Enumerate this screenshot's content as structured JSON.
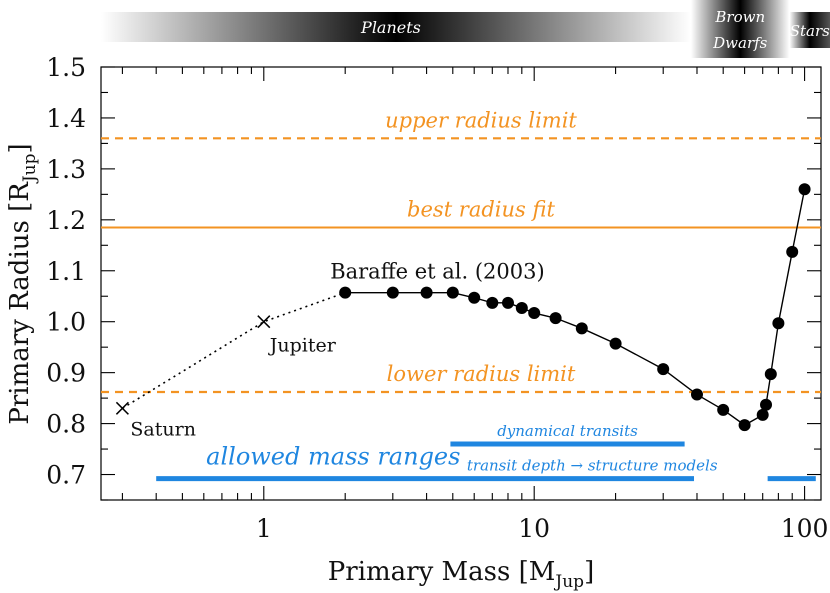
{
  "chart_data": {
    "type": "line",
    "xscale": "log",
    "xlim": [
      0.25,
      115
    ],
    "ylim": [
      0.65,
      1.5
    ],
    "xlabel": "Primary Mass [M",
    "xlabel_sub": "Jup",
    "xlabel_tail": "]",
    "ylabel": "Primary Radius [R",
    "ylabel_sub": "Jup",
    "ylabel_tail": "]",
    "x_ticks": [
      {
        "value": 1,
        "label": "1"
      },
      {
        "value": 10,
        "label": "10"
      },
      {
        "value": 100,
        "label": "100"
      }
    ],
    "y_ticks": [
      {
        "value": 0.7,
        "label": "0.7"
      },
      {
        "value": 0.8,
        "label": "0.8"
      },
      {
        "value": 0.9,
        "label": "0.9"
      },
      {
        "value": 1.0,
        "label": "1.0"
      },
      {
        "value": 1.1,
        "label": "1.1"
      },
      {
        "value": 1.2,
        "label": "1.2"
      },
      {
        "value": 1.3,
        "label": "1.3"
      },
      {
        "value": 1.4,
        "label": "1.4"
      },
      {
        "value": 1.5,
        "label": "1.5"
      }
    ],
    "radius_lines": [
      {
        "name": "upper radius limit",
        "label": "upper radius limit",
        "y": 1.36,
        "style": "dashed"
      },
      {
        "name": "best radius fit",
        "label": "best radius fit",
        "y": 1.185,
        "style": "solid"
      },
      {
        "name": "lower radius limit",
        "label": "lower radius limit",
        "y": 0.862,
        "style": "dashed"
      }
    ],
    "planets": [
      {
        "name": "Saturn",
        "label": "Saturn",
        "x": 0.3,
        "y": 0.83
      },
      {
        "name": "Jupiter",
        "label": "Jupiter",
        "x": 1.0,
        "y": 1.0
      }
    ],
    "series": [
      {
        "name": "Baraffe et al. (2003)",
        "label": "Baraffe et al. (2003)",
        "x": [
          2,
          3,
          4,
          5,
          6,
          7,
          8,
          9,
          10,
          12,
          15,
          20,
          30,
          40,
          50,
          60,
          70,
          72,
          75,
          80,
          90,
          100
        ],
        "y": [
          1.057,
          1.057,
          1.057,
          1.057,
          1.047,
          1.037,
          1.037,
          1.027,
          1.017,
          1.007,
          0.987,
          0.957,
          0.907,
          0.857,
          0.827,
          0.797,
          0.817,
          0.837,
          0.897,
          0.997,
          1.137,
          1.26
        ]
      }
    ],
    "mass_ranges_title": "allowed mass ranges",
    "mass_ranges": [
      {
        "name": "dynamical transits",
        "label": "dynamical transits",
        "y": 0.76,
        "segments": [
          [
            4.9,
            36
          ]
        ]
      },
      {
        "name": "transit depth → structure models",
        "label": "transit depth → structure models",
        "y": 0.692,
        "segments": [
          [
            0.4,
            39
          ],
          [
            73,
            110
          ]
        ]
      }
    ],
    "regime_bands": [
      {
        "name": "Planets",
        "label": "Planets",
        "from": 0.25,
        "to": 38
      },
      {
        "name": "Brown Dwarfs",
        "label": "Brown",
        "label2": "Dwarfs",
        "from": 38,
        "to": 88
      },
      {
        "name": "Stars",
        "label": "Stars",
        "from": 88,
        "to": 115
      }
    ],
    "colors": {
      "orange": "#f39322",
      "blue": "#1f86e0",
      "black": "#000000"
    }
  }
}
